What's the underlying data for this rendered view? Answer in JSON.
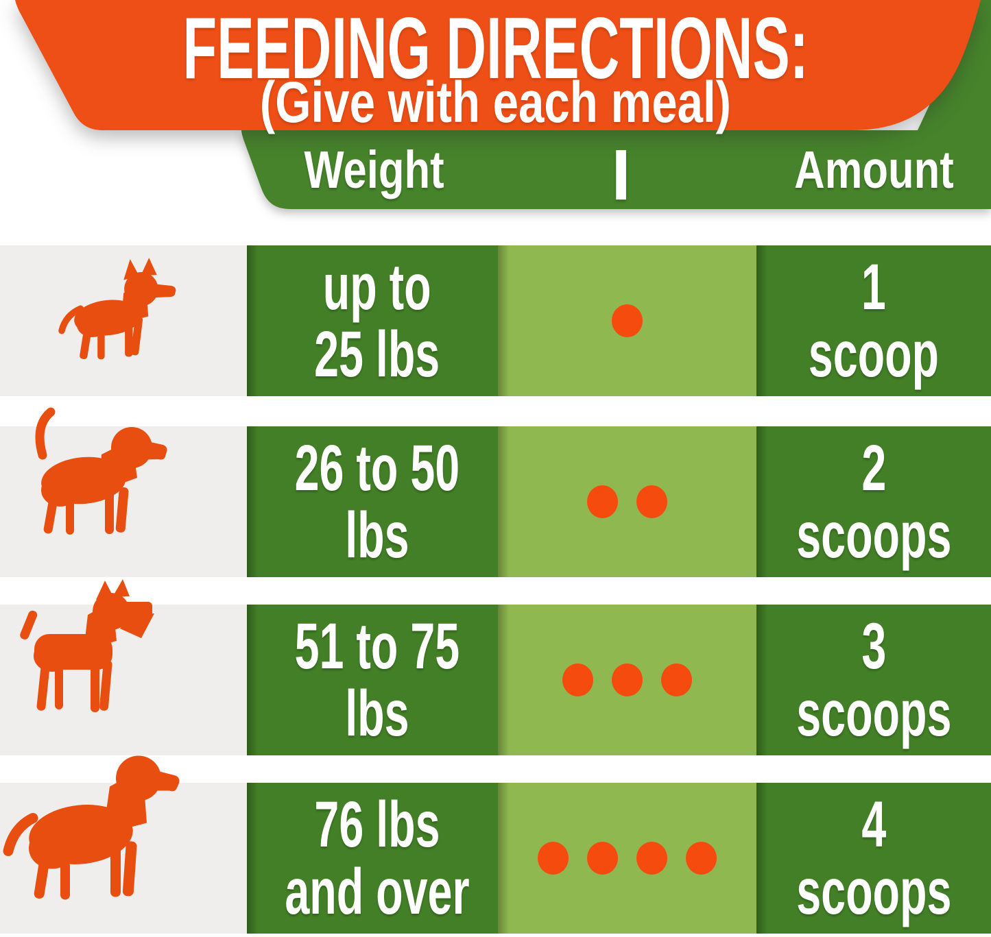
{
  "header": {
    "title": "FEEDING DIRECTIONS:",
    "subtitle": "(Give with each meal)",
    "col_weight": "Weight",
    "divider": "|",
    "col_amount": "Amount"
  },
  "rows": [
    {
      "dog": "small-dog",
      "weight_line1": "up to",
      "weight_line2": "25 lbs",
      "dots": 1,
      "amount_line1": "1",
      "amount_line2": "scoop"
    },
    {
      "dog": "medium-dog",
      "weight_line1": "26 to 50",
      "weight_line2": "lbs",
      "dots": 2,
      "amount_line1": "2",
      "amount_line2": "scoops"
    },
    {
      "dog": "large-dog",
      "weight_line1": "51 to 75",
      "weight_line2": "lbs",
      "dots": 3,
      "amount_line1": "3",
      "amount_line2": "scoops"
    },
    {
      "dog": "extra-large-dog",
      "weight_line1": "76 lbs",
      "weight_line2": "and over",
      "dots": 4,
      "amount_line1": "4",
      "amount_line2": "scoops"
    }
  ],
  "colors": {
    "banner_orange": "#ed4f16",
    "header_green": "#46832b",
    "cell_green": "#427f26",
    "light_green": "#8fb850",
    "row_gray": "#efeeec",
    "dot_orange": "#f64b0e",
    "dog_orange": "#e84e10",
    "text_white": "#ffffff"
  },
  "chart_data": {
    "type": "table",
    "title": "FEEDING DIRECTIONS:",
    "subtitle": "(Give with each meal)",
    "columns": [
      "Weight",
      "Amount"
    ],
    "rows": [
      {
        "dog_size": "small dog",
        "weight": "up to 25 lbs",
        "scoops": 1,
        "amount": "1 scoop"
      },
      {
        "dog_size": "medium dog",
        "weight": "26 to 50 lbs",
        "scoops": 2,
        "amount": "2 scoops"
      },
      {
        "dog_size": "large dog",
        "weight": "51 to 75 lbs",
        "scoops": 3,
        "amount": "3 scoops"
      },
      {
        "dog_size": "extra large dog",
        "weight": "76 lbs and over",
        "scoops": 4,
        "amount": "4 scoops"
      }
    ],
    "legend_position": "none",
    "grid": false
  }
}
